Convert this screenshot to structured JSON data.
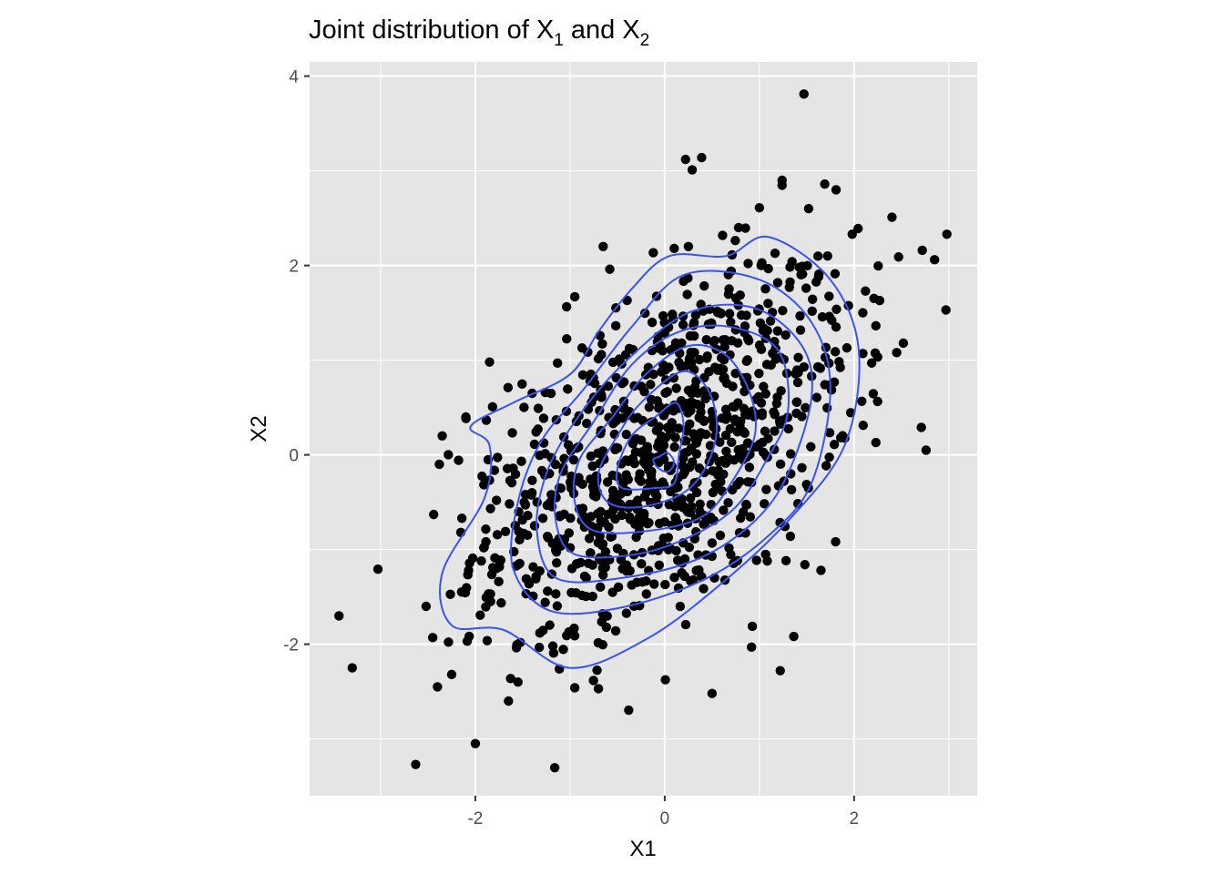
{
  "chart_data": {
    "type": "scatter",
    "title": "Joint distribution of X",
    "title_sub1": "1",
    "title_mid": " and X",
    "title_sub2": "2",
    "xlabel": "X1",
    "ylabel": "X2",
    "xlim": [
      -3.75,
      3.3
    ],
    "ylim": [
      -3.6,
      4.15
    ],
    "xticks": [
      -2,
      0,
      2
    ],
    "xtick_labels": [
      "-2",
      "0",
      "2"
    ],
    "yticks": [
      -2,
      0,
      2,
      4
    ],
    "ytick_labels": [
      "-2",
      "0",
      "2",
      "4"
    ],
    "grid": true,
    "minor_grid": true,
    "background": "#e5e5e5",
    "point_color": "#000000",
    "contour_color": "#3a53f0",
    "points_visible_count_estimate": 1000,
    "outlier_points": [
      {
        "x": 1.47,
        "y": 3.81
      },
      {
        "x": 0.22,
        "y": 3.12
      },
      {
        "x": 0.39,
        "y": 3.14
      },
      {
        "x": 0.29,
        "y": 3.01
      },
      {
        "x": 1.24,
        "y": 2.9
      },
      {
        "x": 1.69,
        "y": 2.86
      },
      {
        "x": 1.81,
        "y": 2.8
      },
      {
        "x": 2.4,
        "y": 2.51
      },
      {
        "x": 2.98,
        "y": 2.33
      },
      {
        "x": 2.72,
        "y": 2.16
      },
      {
        "x": 2.85,
        "y": 2.06
      },
      {
        "x": 2.47,
        "y": 2.09
      },
      {
        "x": 2.97,
        "y": 1.53
      },
      {
        "x": 2.27,
        "y": 1.63
      },
      {
        "x": 2.52,
        "y": 1.18
      },
      {
        "x": 2.45,
        "y": 1.08
      },
      {
        "x": 2.71,
        "y": 0.29
      },
      {
        "x": 2.76,
        "y": 0.05
      },
      {
        "x": 2.23,
        "y": 0.13
      },
      {
        "x": -3.44,
        "y": -1.7
      },
      {
        "x": -3.3,
        "y": -2.25
      },
      {
        "x": -2.63,
        "y": -3.27
      },
      {
        "x": -2.0,
        "y": -3.05
      },
      {
        "x": -1.65,
        "y": -2.6
      },
      {
        "x": -2.4,
        "y": -2.45
      },
      {
        "x": -2.25,
        "y": -2.32
      },
      {
        "x": 0.5,
        "y": -2.52
      },
      {
        "x": 1.22,
        "y": -2.28
      },
      {
        "x": -0.95,
        "y": -2.46
      },
      {
        "x": -0.7,
        "y": -2.47
      },
      {
        "x": -1.4,
        "y": 0.65
      },
      {
        "x": -1.85,
        "y": 0.98
      },
      {
        "x": -0.95,
        "y": 1.67
      },
      {
        "x": -0.58,
        "y": 1.96
      },
      {
        "x": -0.65,
        "y": 2.2
      },
      {
        "x": 0.1,
        "y": 2.18
      },
      {
        "x": 0.25,
        "y": 2.2
      },
      {
        "x": 0.78,
        "y": 2.4
      },
      {
        "x": 1.0,
        "y": 2.61
      },
      {
        "x": 1.52,
        "y": 2.6
      },
      {
        "x": 1.98,
        "y": 2.33
      },
      {
        "x": 1.72,
        "y": 2.1
      },
      {
        "x": 2.12,
        "y": 1.73
      },
      {
        "x": 1.48,
        "y": -1.16
      },
      {
        "x": 1.65,
        "y": -1.22
      },
      {
        "x": -2.52,
        "y": -1.6
      },
      {
        "x": -2.45,
        "y": -1.93
      },
      {
        "x": -1.55,
        "y": -2.4
      },
      {
        "x": -2.1,
        "y": 0.4
      },
      {
        "x": -2.35,
        "y": 0.2
      },
      {
        "x": -2.38,
        "y": -0.1
      },
      {
        "x": -2.44,
        "y": -0.63
      }
    ],
    "center": {
      "x": 0.0,
      "y": 0.0
    },
    "covariance": [
      [
        1.0,
        0.5
      ],
      [
        0.5,
        1.0
      ]
    ],
    "contours": [
      {
        "level": 1,
        "points": [
          [
            -0.06,
            -0.02
          ],
          [
            0.03,
            0.02
          ],
          [
            0.1,
            -0.08
          ],
          [
            0.03,
            -0.18
          ],
          [
            -0.08,
            -0.13
          ],
          [
            -0.12,
            -0.05
          ],
          [
            -0.06,
            -0.02
          ]
        ]
      },
      {
        "level": 2,
        "points": [
          [
            0.12,
            0.55
          ],
          [
            0.2,
            0.3
          ],
          [
            0.15,
            0.0
          ],
          [
            0.1,
            -0.3
          ],
          [
            -0.1,
            -0.35
          ],
          [
            -0.45,
            -0.35
          ],
          [
            -0.5,
            -0.15
          ],
          [
            -0.35,
            0.2
          ],
          [
            -0.1,
            0.4
          ],
          [
            0.12,
            0.55
          ]
        ]
      },
      {
        "level": 3,
        "points": [
          [
            0.18,
            0.88
          ],
          [
            0.45,
            0.7
          ],
          [
            0.55,
            0.3
          ],
          [
            0.45,
            -0.1
          ],
          [
            0.2,
            -0.4
          ],
          [
            -0.25,
            -0.55
          ],
          [
            -0.6,
            -0.5
          ],
          [
            -0.7,
            -0.2
          ],
          [
            -0.5,
            0.2
          ],
          [
            -0.25,
            0.55
          ],
          [
            0.18,
            0.88
          ]
        ]
      },
      {
        "level": 4,
        "points": [
          [
            0.25,
            1.15
          ],
          [
            0.65,
            1.05
          ],
          [
            0.9,
            0.65
          ],
          [
            0.95,
            0.2
          ],
          [
            0.7,
            -0.3
          ],
          [
            0.4,
            -0.65
          ],
          [
            -0.15,
            -0.8
          ],
          [
            -0.75,
            -0.8
          ],
          [
            -0.95,
            -0.5
          ],
          [
            -0.9,
            -0.05
          ],
          [
            -0.55,
            0.4
          ],
          [
            -0.2,
            0.85
          ],
          [
            0.25,
            1.15
          ]
        ]
      },
      {
        "level": 5,
        "points": [
          [
            0.15,
            1.3
          ],
          [
            0.7,
            1.35
          ],
          [
            1.2,
            1.1
          ],
          [
            1.3,
            0.45
          ],
          [
            1.05,
            -0.1
          ],
          [
            0.75,
            -0.55
          ],
          [
            0.3,
            -0.85
          ],
          [
            -0.3,
            -1.05
          ],
          [
            -0.95,
            -1.05
          ],
          [
            -1.15,
            -0.7
          ],
          [
            -1.1,
            -0.2
          ],
          [
            -0.75,
            0.35
          ],
          [
            -0.35,
            0.95
          ],
          [
            0.15,
            1.3
          ]
        ]
      },
      {
        "level": 6,
        "points": [
          [
            0.25,
            1.5
          ],
          [
            0.95,
            1.55
          ],
          [
            1.45,
            1.15
          ],
          [
            1.55,
            0.6
          ],
          [
            1.3,
            -0.2
          ],
          [
            0.95,
            -0.7
          ],
          [
            0.35,
            -1.1
          ],
          [
            -0.45,
            -1.3
          ],
          [
            -1.15,
            -1.3
          ],
          [
            -1.35,
            -0.8
          ],
          [
            -1.25,
            -0.2
          ],
          [
            -0.95,
            0.35
          ],
          [
            -0.45,
            0.95
          ],
          [
            0.25,
            1.5
          ]
        ]
      },
      {
        "level": 7,
        "points": [
          [
            0.2,
            1.9
          ],
          [
            1.0,
            1.85
          ],
          [
            1.55,
            1.4
          ],
          [
            1.75,
            0.7
          ],
          [
            1.55,
            -0.3
          ],
          [
            1.1,
            -0.85
          ],
          [
            0.45,
            -1.3
          ],
          [
            -0.4,
            -1.6
          ],
          [
            -1.2,
            -1.65
          ],
          [
            -1.6,
            -1.2
          ],
          [
            -1.55,
            -0.5
          ],
          [
            -1.3,
            0.15
          ],
          [
            -0.85,
            0.7
          ],
          [
            -0.35,
            1.35
          ],
          [
            0.2,
            1.9
          ]
        ]
      },
      {
        "level": 8,
        "points": [
          [
            0.05,
            2.1
          ],
          [
            0.65,
            2.1
          ],
          [
            1.1,
            2.3
          ],
          [
            1.75,
            1.85
          ],
          [
            2.05,
            1.1
          ],
          [
            1.9,
            0.1
          ],
          [
            1.3,
            -0.7
          ],
          [
            0.55,
            -1.4
          ],
          [
            -0.2,
            -1.95
          ],
          [
            -1.0,
            -2.25
          ],
          [
            -1.7,
            -1.85
          ],
          [
            -2.25,
            -1.8
          ],
          [
            -2.35,
            -1.25
          ],
          [
            -1.9,
            -0.45
          ],
          [
            -1.85,
            0.1
          ],
          [
            -2.05,
            0.3
          ],
          [
            -1.6,
            0.55
          ],
          [
            -1.0,
            0.85
          ],
          [
            -0.7,
            1.3
          ],
          [
            -0.35,
            1.75
          ],
          [
            0.05,
            2.1
          ]
        ]
      }
    ]
  }
}
